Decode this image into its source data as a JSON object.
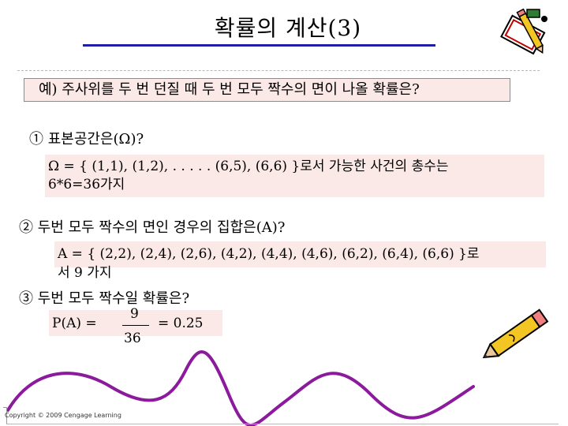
{
  "title": "확률의 계산(3)",
  "question": "예) 주사위를 두 번 던질 때 두 번 모두 짝수의 면이 나올 확률은?",
  "step1": {
    "label": "① 표본공간은(Ω)?",
    "line1": "Ω = { (1,1), (1,2), . . . . . (6,5), (6,6) }로서 가능한 사건의 총수는",
    "line2": "6*6=36가지"
  },
  "step2": {
    "label": "② 두번 모두 짝수의 면인 경우의 집합은(A)?",
    "line1": "A = { (2,2), (2,4), (2,6), (4,2), (4,4), (4,6), (6,2), (6,4), (6,6) }로",
    "line2": "서 9 가지"
  },
  "step3": {
    "label": "③ 두번 모두 짝수일 확률은?",
    "lhs": "P(A) =",
    "numerator": "9",
    "denominator": "36",
    "result": "= 0.25"
  },
  "copyright": "Copyright © 2009 Cengage Learning",
  "decorations": {
    "top_icon": "pencil-and-paper-icon",
    "bottom_icon": "pencil-icon",
    "curve": "wavy-pencil-line",
    "curve_color": "#8b1a9c"
  }
}
